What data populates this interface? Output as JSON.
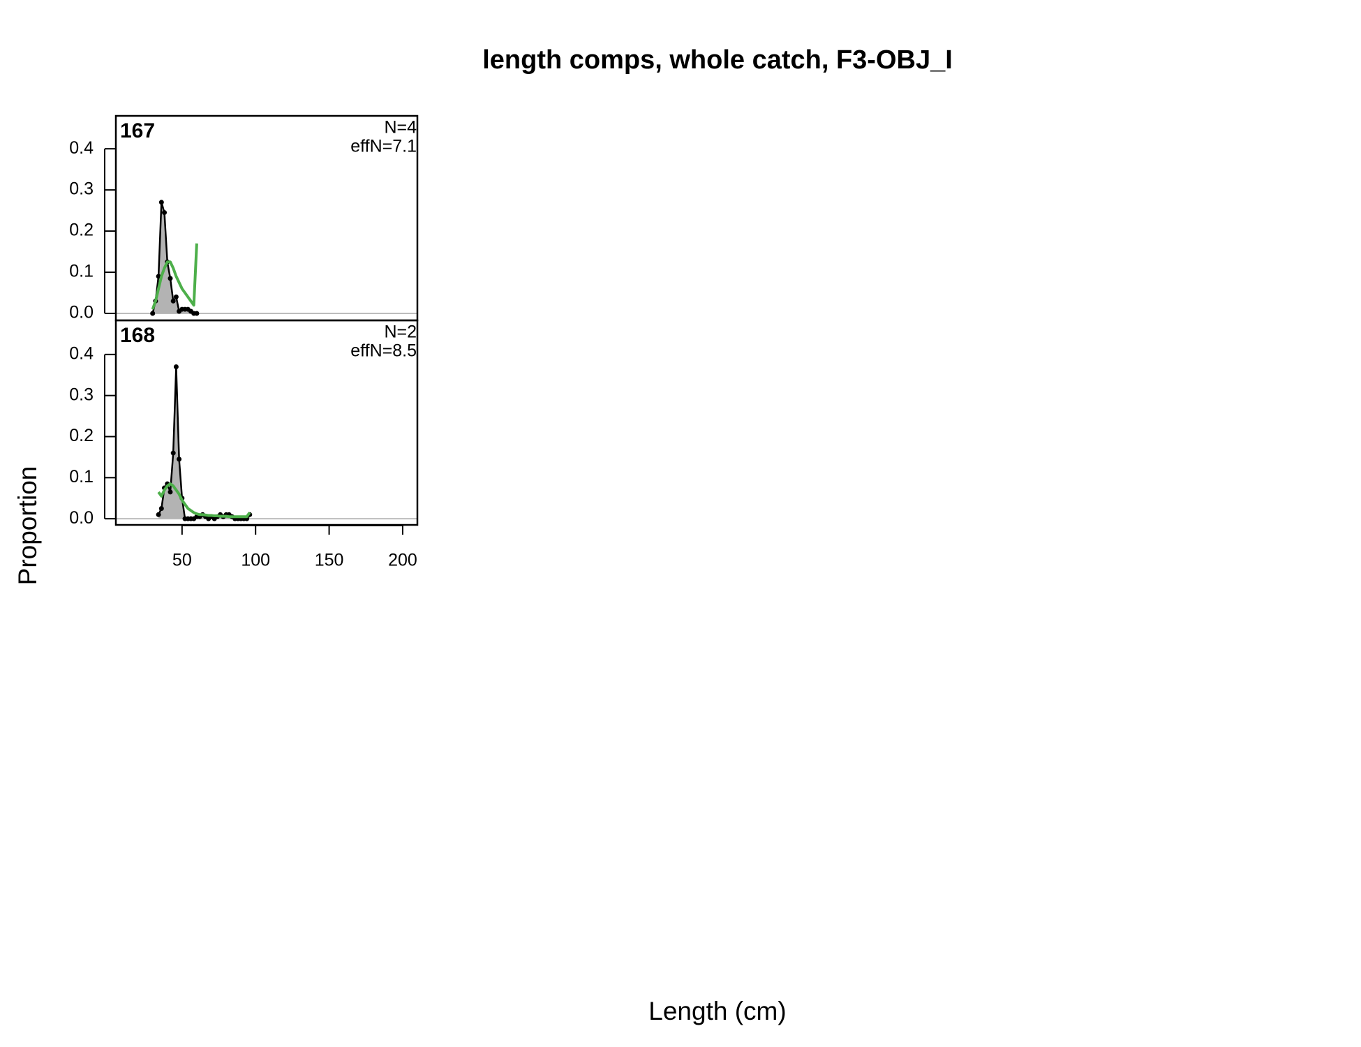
{
  "figure": {
    "title": "length comps, whole catch, F3-OBJ_I",
    "xlabel": "Length (cm)",
    "ylabel": "Proportion"
  },
  "chart_data": [
    {
      "type": "composition",
      "label": "167",
      "annotations": [
        "N=4",
        "effN=7.1"
      ],
      "x": [
        30,
        32,
        34,
        36,
        38,
        40,
        42,
        44,
        46,
        48,
        50,
        52,
        54,
        56,
        58,
        60
      ],
      "series": [
        {
          "style": "area",
          "color": "#000000",
          "fill": "#b3b3b3",
          "values": [
            0,
            0.03,
            0.09,
            0.27,
            0.245,
            0.125,
            0.085,
            0.03,
            0.04,
            0.005,
            0.01,
            0.01,
            0.01,
            0.005,
            0,
            0
          ]
        },
        {
          "style": "line",
          "color": "#4daf4a",
          "values": [
            0.01,
            0.03,
            0.06,
            0.09,
            0.11,
            0.125,
            0.125,
            0.11,
            0.09,
            0.075,
            0.06,
            0.05,
            0.04,
            0.03,
            0.02,
            0.17
          ]
        }
      ],
      "xlim": [
        5,
        210
      ],
      "ylim": [
        -0.017,
        0.48
      ],
      "yticks": [
        {
          "value": 0,
          "label": "0.0"
        },
        0.1,
        0.2,
        0.3,
        0.4
      ]
    },
    {
      "type": "composition",
      "label": "168",
      "annotations": [
        "N=2",
        "effN=8.5"
      ],
      "x": [
        34,
        36,
        38,
        40,
        42,
        44,
        46,
        48,
        50,
        52,
        54,
        56,
        58,
        60,
        62,
        64,
        66,
        68,
        70,
        72,
        74,
        76,
        78,
        80,
        82,
        84,
        86,
        88,
        90,
        92,
        94,
        96
      ],
      "series": [
        {
          "style": "area",
          "color": "#000000",
          "fill": "#b3b3b3",
          "values": [
            0.01,
            0.025,
            0.075,
            0.085,
            0.065,
            0.16,
            0.37,
            0.145,
            0.05,
            0,
            0,
            0,
            0,
            0.005,
            0.005,
            0.01,
            0.005,
            0,
            0.005,
            0,
            0.005,
            0.01,
            0.005,
            0.01,
            0.01,
            0.005,
            0,
            0,
            0,
            0,
            0,
            0.01
          ]
        },
        {
          "style": "line",
          "color": "#4daf4a",
          "values": [
            0.065,
            0.055,
            0.07,
            0.08,
            0.085,
            0.08,
            0.07,
            0.06,
            0.045,
            0.035,
            0.025,
            0.02,
            0.015,
            0.012,
            0.01,
            0.01,
            0.009,
            0.008,
            0.008,
            0.007,
            0.007,
            0.006,
            0.006,
            0.006,
            0.005,
            0.005,
            0.005,
            0.005,
            0.005,
            0.005,
            0.005,
            0.015
          ]
        }
      ],
      "xlim": [
        5,
        210
      ],
      "ylim": [
        -0.015,
        0.483
      ],
      "yticks": [
        {
          "value": 0,
          "label": "0.0"
        },
        0.1,
        0.2,
        0.3,
        0.4
      ],
      "xticks": [
        50,
        100,
        150,
        200
      ]
    }
  ]
}
